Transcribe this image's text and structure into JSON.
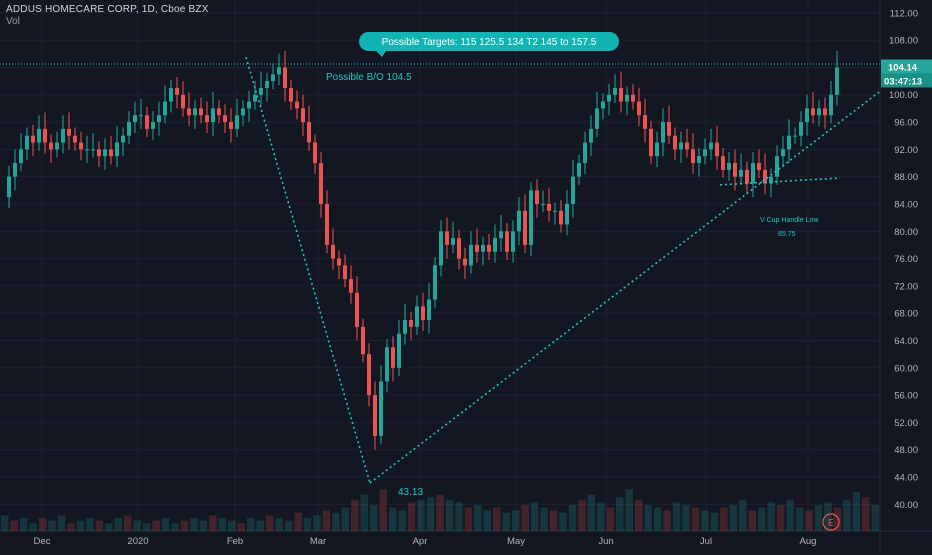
{
  "header": {
    "symbol_line": "ADDUS HOMECARE CORP, 1D, Cboe BZX",
    "volume_label": "Vol"
  },
  "colors": {
    "background": "#131722",
    "grid": "#1e2230",
    "up": "#26a69a",
    "down": "#ef5350",
    "annotation": "#22c4c4",
    "axis_text": "#b2b5be"
  },
  "chart_data": {
    "type": "candlestick",
    "title": "ADDUS HOMECARE CORP, 1D, Cboe BZX",
    "ylim": [
      38,
      113
    ],
    "y_ticks": [
      "112.00",
      "108.00",
      "104.00",
      "100.00",
      "96.00",
      "92.00",
      "88.00",
      "84.00",
      "80.00",
      "76.00",
      "72.00",
      "68.00",
      "64.00",
      "60.00",
      "56.00",
      "52.00",
      "48.00",
      "44.00",
      "40.00"
    ],
    "x_ticks": [
      "Dec",
      "2020",
      "Feb",
      "Mar",
      "Apr",
      "May",
      "Jun",
      "Jul",
      "Aug"
    ],
    "last_price": "104.14",
    "countdown": "03:47:13",
    "labels": {
      "possible_targets": "Possible Targets:  115 125.5  134 T2  145 to 157.5",
      "possible_bo": "Possible B/O 104.5",
      "cup_handle": "V Cup Handle Low",
      "cup_handle_value": "85.75",
      "low_value": "43.13",
      "earnings_marker": "E"
    },
    "close_path": [
      [
        0,
        85
      ],
      [
        6,
        88
      ],
      [
        12,
        90
      ],
      [
        18,
        92
      ],
      [
        24,
        94
      ],
      [
        30,
        93
      ],
      [
        36,
        95
      ],
      [
        42,
        93
      ],
      [
        48,
        92
      ],
      [
        54,
        93
      ],
      [
        60,
        95
      ],
      [
        66,
        94
      ],
      [
        72,
        93
      ],
      [
        78,
        92
      ],
      [
        84,
        92
      ],
      [
        90,
        92
      ],
      [
        96,
        91
      ],
      [
        102,
        92
      ],
      [
        108,
        91
      ],
      [
        114,
        93
      ],
      [
        120,
        94
      ],
      [
        126,
        96
      ],
      [
        132,
        97
      ],
      [
        138,
        97
      ],
      [
        144,
        95
      ],
      [
        150,
        96
      ],
      [
        156,
        97
      ],
      [
        162,
        99
      ],
      [
        168,
        101
      ],
      [
        174,
        100
      ],
      [
        180,
        98
      ],
      [
        186,
        97
      ],
      [
        192,
        98
      ],
      [
        198,
        97
      ],
      [
        204,
        96
      ],
      [
        210,
        98
      ],
      [
        216,
        97
      ],
      [
        222,
        96
      ],
      [
        228,
        95
      ],
      [
        234,
        97
      ],
      [
        240,
        98
      ],
      [
        246,
        99
      ],
      [
        252,
        100
      ],
      [
        258,
        101
      ],
      [
        264,
        102
      ],
      [
        270,
        103
      ],
      [
        276,
        104
      ],
      [
        282,
        101
      ],
      [
        288,
        99
      ],
      [
        294,
        98
      ],
      [
        300,
        96
      ],
      [
        306,
        93
      ],
      [
        312,
        90
      ],
      [
        318,
        84
      ],
      [
        324,
        78
      ],
      [
        330,
        76
      ],
      [
        336,
        75
      ],
      [
        342,
        73
      ],
      [
        348,
        71
      ],
      [
        354,
        66
      ],
      [
        360,
        62
      ],
      [
        366,
        56
      ],
      [
        372,
        50
      ],
      [
        378,
        58
      ],
      [
        384,
        63
      ],
      [
        390,
        60
      ],
      [
        396,
        65
      ],
      [
        402,
        67
      ],
      [
        408,
        66
      ],
      [
        414,
        69
      ],
      [
        420,
        67
      ],
      [
        426,
        70
      ],
      [
        432,
        75
      ],
      [
        438,
        80
      ],
      [
        444,
        78
      ],
      [
        450,
        79
      ],
      [
        456,
        76
      ],
      [
        462,
        75
      ],
      [
        468,
        78
      ],
      [
        474,
        77
      ],
      [
        480,
        78
      ],
      [
        486,
        77
      ],
      [
        492,
        79
      ],
      [
        498,
        80
      ],
      [
        504,
        77
      ],
      [
        510,
        80
      ],
      [
        516,
        83
      ],
      [
        522,
        78
      ],
      [
        528,
        86
      ],
      [
        534,
        84
      ],
      [
        540,
        84
      ],
      [
        546,
        83
      ],
      [
        552,
        83
      ],
      [
        558,
        81
      ],
      [
        564,
        84
      ],
      [
        570,
        88
      ],
      [
        576,
        90
      ],
      [
        582,
        93
      ],
      [
        588,
        95
      ],
      [
        594,
        98
      ],
      [
        600,
        99
      ],
      [
        606,
        100
      ],
      [
        612,
        101
      ],
      [
        618,
        99
      ],
      [
        624,
        100
      ],
      [
        630,
        99
      ],
      [
        636,
        97
      ],
      [
        642,
        95
      ],
      [
        648,
        91
      ],
      [
        654,
        93
      ],
      [
        660,
        96
      ],
      [
        666,
        94
      ],
      [
        672,
        92
      ],
      [
        678,
        93
      ],
      [
        684,
        92
      ],
      [
        690,
        90
      ],
      [
        696,
        91
      ],
      [
        702,
        92
      ],
      [
        708,
        93
      ],
      [
        714,
        91
      ],
      [
        720,
        89
      ],
      [
        726,
        90
      ],
      [
        732,
        88
      ],
      [
        738,
        89
      ],
      [
        744,
        87
      ],
      [
        750,
        90
      ],
      [
        756,
        89
      ],
      [
        762,
        87
      ],
      [
        768,
        88
      ],
      [
        774,
        91
      ],
      [
        780,
        92
      ],
      [
        786,
        94
      ],
      [
        792,
        94
      ],
      [
        798,
        96
      ],
      [
        804,
        98
      ],
      [
        810,
        97
      ],
      [
        816,
        98
      ],
      [
        822,
        97
      ],
      [
        828,
        100
      ],
      [
        834,
        104
      ]
    ],
    "trend_lines": [
      {
        "name": "decline",
        "from": [
          246,
          105.5
        ],
        "to": [
          370,
          43.13
        ]
      },
      {
        "name": "rising",
        "from": [
          370,
          43.13
        ],
        "to": [
          880,
          100.5
        ]
      },
      {
        "name": "handle",
        "from": [
          720,
          86.8
        ],
        "to": [
          840,
          87.8
        ]
      },
      {
        "name": "breakout",
        "from": [
          0,
          104.5
        ],
        "to": [
          880,
          104.5
        ]
      }
    ],
    "volume_bars": [
      6,
      4,
      5,
      3,
      5,
      4,
      6,
      3,
      4,
      5,
      4,
      3,
      5,
      6,
      4,
      3,
      4,
      5,
      3,
      4,
      5,
      4,
      6,
      5,
      4,
      3,
      5,
      4,
      6,
      5,
      4,
      7,
      5,
      6,
      8,
      7,
      9,
      12,
      14,
      10,
      16,
      9,
      8,
      11,
      12,
      13,
      14,
      12,
      11,
      9,
      10,
      8,
      9,
      7,
      8,
      10,
      11,
      9,
      8,
      7,
      10,
      12,
      14,
      11,
      9,
      13,
      16,
      12,
      10,
      9,
      8,
      11,
      10,
      9,
      8,
      7,
      9,
      10,
      12,
      8,
      9,
      11,
      10,
      12,
      9,
      8,
      10,
      11,
      9,
      12,
      15,
      13,
      10
    ]
  }
}
